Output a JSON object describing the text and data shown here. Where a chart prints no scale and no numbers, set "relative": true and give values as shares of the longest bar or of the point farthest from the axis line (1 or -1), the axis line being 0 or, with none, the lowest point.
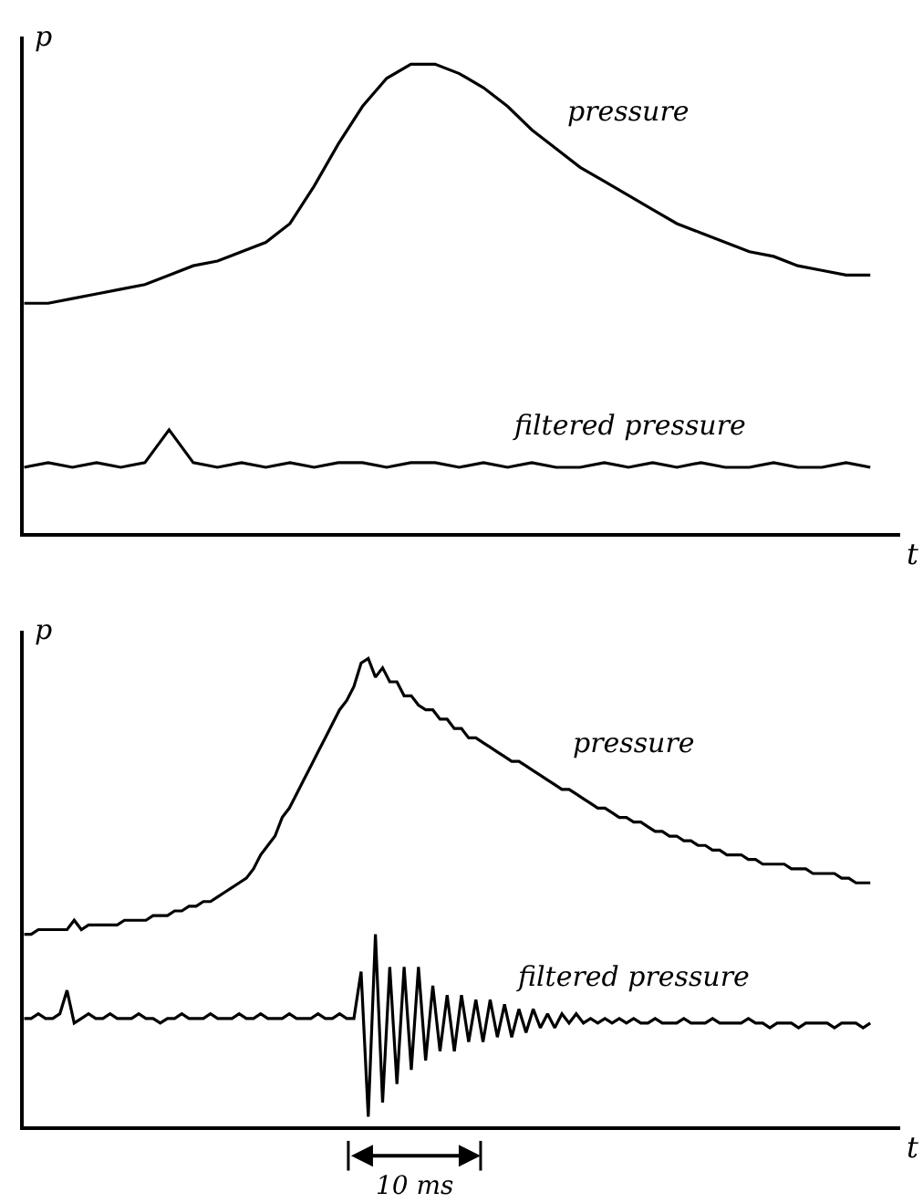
{
  "chart_data": [
    {
      "type": "line",
      "relative": true,
      "xlabel": "t",
      "ylabel": "p",
      "legend": false,
      "marker": "none",
      "line_style": "solid",
      "categories": [
        null,
        null,
        null,
        null,
        null,
        null,
        null,
        null,
        null,
        null,
        null,
        null,
        null,
        null,
        null,
        null,
        null,
        null,
        null,
        null,
        null,
        null,
        null,
        null,
        null,
        null,
        null,
        null,
        null,
        null,
        null,
        null,
        null,
        null,
        null,
        null
      ],
      "series": [
        {
          "name": "pressure",
          "color": "#000000",
          "values": [
            0.49,
            0.49,
            0.5,
            0.51,
            0.52,
            0.53,
            0.55,
            0.57,
            0.58,
            0.6,
            0.62,
            0.66,
            0.74,
            0.83,
            0.91,
            0.97,
            1.0,
            1.0,
            0.98,
            0.95,
            0.91,
            0.86,
            0.82,
            0.78,
            0.75,
            0.72,
            0.69,
            0.66,
            0.64,
            0.62,
            0.6,
            0.59,
            0.57,
            0.56,
            0.55,
            0.55
          ]
        },
        {
          "name": "filtered pressure",
          "color": "#000000",
          "values": [
            0.14,
            0.15,
            0.14,
            0.15,
            0.14,
            0.15,
            0.22,
            0.15,
            0.14,
            0.15,
            0.14,
            0.15,
            0.14,
            0.15,
            0.15,
            0.14,
            0.15,
            0.15,
            0.14,
            0.15,
            0.14,
            0.15,
            0.14,
            0.14,
            0.15,
            0.14,
            0.15,
            0.14,
            0.15,
            0.14,
            0.14,
            0.15,
            0.14,
            0.14,
            0.15,
            0.14
          ]
        }
      ]
    },
    {
      "type": "line",
      "relative": true,
      "xlabel": "t",
      "ylabel": "p",
      "legend": false,
      "marker": "none",
      "line_style": "solid",
      "annotations": [
        "10 ms"
      ],
      "categories": [
        null,
        null,
        null,
        null,
        null,
        null,
        null,
        null,
        null,
        null,
        null,
        null,
        null,
        null,
        null,
        null,
        null,
        null,
        null,
        null,
        null,
        null,
        null,
        null,
        null,
        null,
        null,
        null,
        null,
        null,
        null,
        null,
        null,
        null,
        null,
        null,
        null,
        null,
        null,
        null,
        null,
        null,
        null,
        null,
        null,
        null,
        null,
        null,
        null,
        null,
        null,
        null,
        null,
        null,
        null,
        null,
        null,
        null,
        null,
        null,
        null,
        null,
        null,
        null,
        null,
        null,
        null,
        null,
        null,
        null,
        null,
        null,
        null,
        null,
        null,
        null,
        null,
        null,
        null,
        null,
        null,
        null,
        null,
        null,
        null,
        null,
        null,
        null,
        null,
        null,
        null,
        null,
        null,
        null,
        null,
        null,
        null,
        null,
        null,
        null,
        null,
        null,
        null,
        null,
        null,
        null,
        null,
        null,
        null,
        null,
        null,
        null,
        null,
        null,
        null,
        null,
        null,
        null,
        null
      ],
      "series": [
        {
          "name": "pressure",
          "color": "#000000",
          "values": [
            0.41,
            0.41,
            0.42,
            0.42,
            0.42,
            0.42,
            0.42,
            0.44,
            0.42,
            0.43,
            0.43,
            0.43,
            0.43,
            0.43,
            0.44,
            0.44,
            0.44,
            0.44,
            0.45,
            0.45,
            0.45,
            0.46,
            0.46,
            0.47,
            0.47,
            0.48,
            0.48,
            0.49,
            0.5,
            0.51,
            0.52,
            0.53,
            0.55,
            0.58,
            0.6,
            0.62,
            0.66,
            0.68,
            0.71,
            0.74,
            0.77,
            0.8,
            0.83,
            0.86,
            0.89,
            0.91,
            0.94,
            0.99,
            1.0,
            0.96,
            0.98,
            0.95,
            0.95,
            0.92,
            0.92,
            0.9,
            0.89,
            0.89,
            0.87,
            0.87,
            0.85,
            0.85,
            0.83,
            0.83,
            0.82,
            0.81,
            0.8,
            0.79,
            0.78,
            0.78,
            0.77,
            0.76,
            0.75,
            0.74,
            0.73,
            0.72,
            0.72,
            0.71,
            0.7,
            0.69,
            0.68,
            0.68,
            0.67,
            0.66,
            0.66,
            0.65,
            0.65,
            0.64,
            0.63,
            0.63,
            0.62,
            0.62,
            0.61,
            0.61,
            0.6,
            0.6,
            0.59,
            0.59,
            0.58,
            0.58,
            0.58,
            0.57,
            0.57,
            0.56,
            0.56,
            0.56,
            0.56,
            0.55,
            0.55,
            0.55,
            0.54,
            0.54,
            0.54,
            0.54,
            0.53,
            0.53,
            0.52,
            0.52,
            0.52
          ]
        },
        {
          "name": "filtered pressure",
          "color": "#000000",
          "values": [
            0.23,
            0.23,
            0.24,
            0.23,
            0.23,
            0.24,
            0.29,
            0.22,
            0.23,
            0.24,
            0.23,
            0.23,
            0.24,
            0.23,
            0.23,
            0.23,
            0.24,
            0.23,
            0.23,
            0.22,
            0.23,
            0.23,
            0.24,
            0.23,
            0.23,
            0.23,
            0.24,
            0.23,
            0.23,
            0.23,
            0.24,
            0.23,
            0.23,
            0.24,
            0.23,
            0.23,
            0.23,
            0.24,
            0.23,
            0.23,
            0.23,
            0.24,
            0.23,
            0.23,
            0.24,
            0.23,
            0.23,
            0.33,
            0.02,
            0.41,
            0.05,
            0.34,
            0.09,
            0.34,
            0.12,
            0.34,
            0.14,
            0.3,
            0.16,
            0.28,
            0.16,
            0.28,
            0.18,
            0.27,
            0.18,
            0.27,
            0.19,
            0.26,
            0.19,
            0.25,
            0.2,
            0.25,
            0.21,
            0.24,
            0.21,
            0.24,
            0.22,
            0.24,
            0.22,
            0.23,
            0.22,
            0.23,
            0.22,
            0.23,
            0.22,
            0.23,
            0.22,
            0.22,
            0.23,
            0.22,
            0.22,
            0.22,
            0.23,
            0.22,
            0.22,
            0.22,
            0.23,
            0.22,
            0.22,
            0.22,
            0.22,
            0.23,
            0.22,
            0.22,
            0.21,
            0.22,
            0.22,
            0.22,
            0.21,
            0.22,
            0.22,
            0.22,
            0.22,
            0.21,
            0.22,
            0.22,
            0.22,
            0.21,
            0.22
          ]
        }
      ]
    }
  ]
}
